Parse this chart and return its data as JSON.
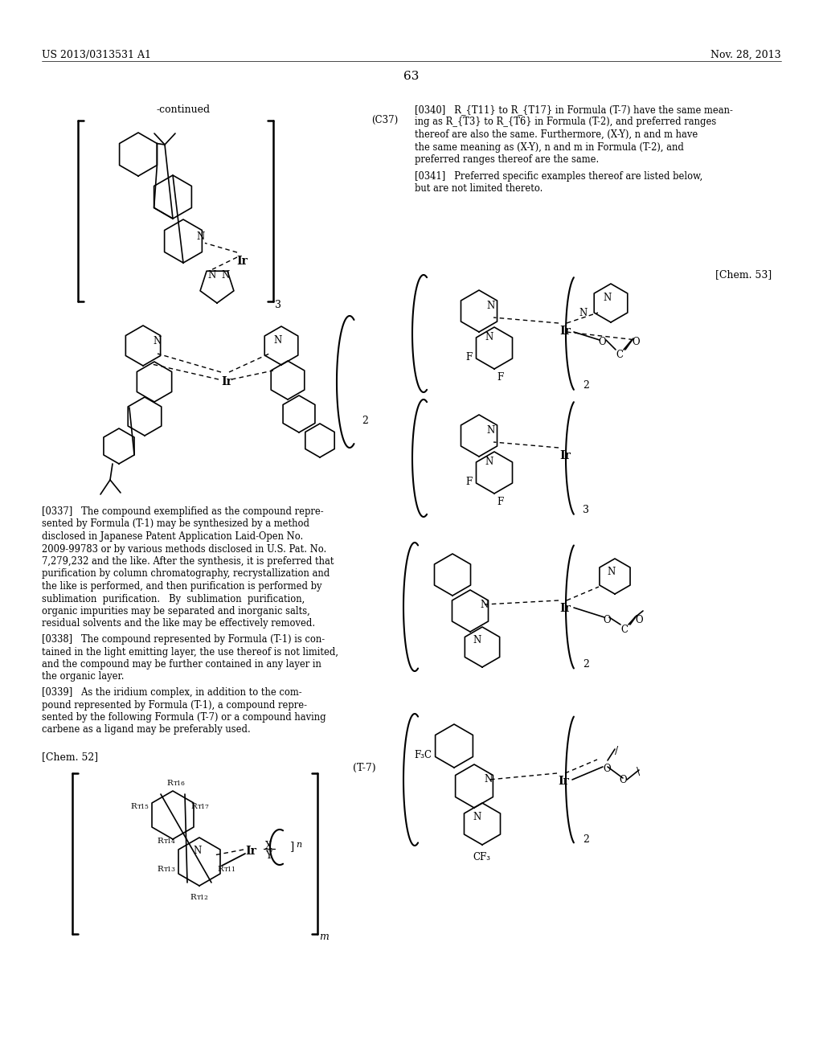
{
  "background_color": "#ffffff",
  "page_width": 10.24,
  "page_height": 13.2,
  "header_left": "US 2013/0313531 A1",
  "header_right": "Nov. 28, 2013",
  "page_number": "63",
  "continued_label": "-continued",
  "c37_label": "(C37)",
  "chem52_label": "[Chem. 52]",
  "chem53_label": "[Chem. 53]",
  "t7_label": "(T-7)",
  "para0337_lines": [
    "[0337]   The compound exemplified as the compound repre-",
    "sented by Formula (T-1) may be synthesized by a method",
    "disclosed in Japanese Patent Application Laid-Open No.",
    "2009-99783 or by various methods disclosed in U.S. Pat. No.",
    "7,279,232 and the like. After the synthesis, it is preferred that",
    "purification by column chromatography, recrystallization and",
    "the like is performed, and then purification is performed by",
    "sublimation  purification.   By  sublimation  purification,",
    "organic impurities may be separated and inorganic salts,",
    "residual solvents and the like may be effectively removed."
  ],
  "para0338_lines": [
    "[0338]   The compound represented by Formula (T-1) is con-",
    "tained in the light emitting layer, the use thereof is not limited,",
    "and the compound may be further contained in any layer in",
    "the organic layer."
  ],
  "para0339_lines": [
    "[0339]   As the iridium complex, in addition to the com-",
    "pound represented by Formula (T-1), a compound repre-",
    "sented by the following Formula (T-7) or a compound having",
    "carbene as a ligand may be preferably used."
  ],
  "para0340_lines": [
    "[0340]   R_{T11} to R_{T17} in Formula (T-7) have the same mean-",
    "ing as R_{T3} to R_{T6} in Formula (T-2), and preferred ranges",
    "thereof are also the same. Furthermore, (X-Y), n and m have",
    "the same meaning as (X-Y), n and m in Formula (T-2), and",
    "preferred ranges thereof are the same."
  ],
  "para0341_lines": [
    "[0341]   Preferred specific examples thereof are listed below,",
    "but are not limited thereto."
  ]
}
